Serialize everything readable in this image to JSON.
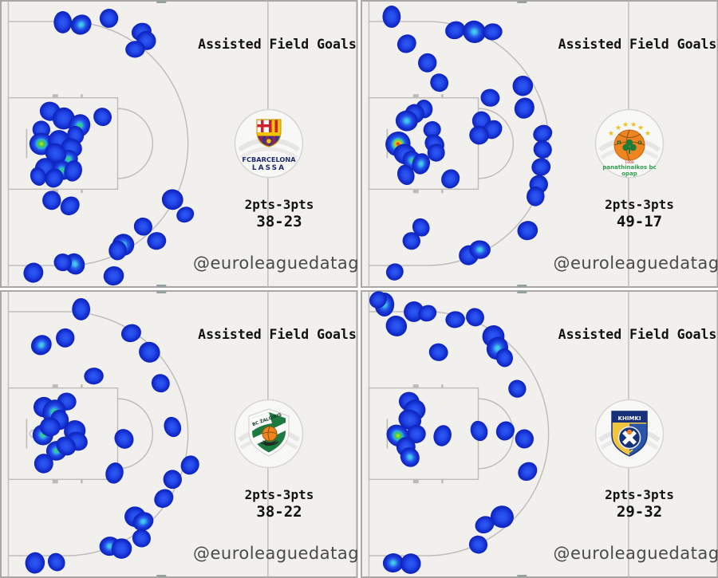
{
  "ui": {
    "watermark": "@euroleaguedataguy",
    "colors": {
      "panel_bg": "#f1f0ed",
      "court_line": "#bdbab7",
      "panel_border": "#a9a6a3",
      "tick_mark": "#95a0a0",
      "title_text": "#111111",
      "watermark_text": "#4a4a4a",
      "heat_levels": [
        [
          [
            0,
            "#2e5bf0"
          ],
          [
            0.45,
            "#2349ea"
          ],
          [
            0.72,
            "#1733d4"
          ],
          [
            1,
            "#0c22b8"
          ]
        ],
        [
          [
            0,
            "#45d6e2"
          ],
          [
            0.22,
            "#38b4ea"
          ],
          [
            0.42,
            "#2a62ee"
          ],
          [
            0.7,
            "#1834d6"
          ],
          [
            1,
            "#0c22b8"
          ]
        ],
        [
          [
            0,
            "#2fd04e"
          ],
          [
            0.2,
            "#31c8b4"
          ],
          [
            0.35,
            "#2d8cec"
          ],
          [
            0.55,
            "#2349e8"
          ],
          [
            0.8,
            "#1531cc"
          ],
          [
            1,
            "#0c22b8"
          ]
        ],
        [
          [
            0,
            "#cfe51c"
          ],
          [
            0.14,
            "#7fd92f"
          ],
          [
            0.26,
            "#35c45c"
          ],
          [
            0.4,
            "#30b4d8"
          ],
          [
            0.58,
            "#2453ec"
          ],
          [
            0.82,
            "#1531cc"
          ],
          [
            1,
            "#0c22b8"
          ]
        ],
        [
          [
            0,
            "#dd1f12"
          ],
          [
            0.12,
            "#f26a15"
          ],
          [
            0.2,
            "#edc41d"
          ],
          [
            0.3,
            "#7fd22c"
          ],
          [
            0.42,
            "#32c2c8"
          ],
          [
            0.58,
            "#2453ec"
          ],
          [
            0.82,
            "#1531cc"
          ],
          [
            1,
            "#0c22b8"
          ]
        ]
      ]
    }
  },
  "chart_data": [
    {
      "panel": "top-left",
      "type": "heatmap",
      "title": "Assisted Field Goals",
      "team": "FC Barcelona Lassa",
      "logo_lines": [
        "FCBARCELONA",
        "LASSA"
      ],
      "stats_label": "2pts-3pts",
      "score": "38-23",
      "assisted_2pt": 38,
      "assisted_3pt": 23,
      "watermark": "@euroleaguedataguy",
      "coord_space": [
        450,
        362
      ],
      "shots": [
        [
          79,
          28,
          0,
          13
        ],
        [
          102,
          31,
          1,
          13
        ],
        [
          137,
          23,
          0,
          12
        ],
        [
          178,
          40,
          0,
          12
        ],
        [
          184,
          51,
          0,
          11
        ],
        [
          170,
          62,
          0,
          12
        ],
        [
          129,
          147,
          0,
          12
        ],
        [
          63,
          140,
          0,
          13
        ],
        [
          80,
          149,
          0,
          13
        ],
        [
          100,
          158,
          2,
          13
        ],
        [
          95,
          170,
          0,
          12
        ],
        [
          52,
          163,
          0,
          12
        ],
        [
          52,
          181,
          3,
          14
        ],
        [
          74,
          177,
          0,
          13
        ],
        [
          90,
          186,
          0,
          12
        ],
        [
          86,
          200,
          2,
          13
        ],
        [
          70,
          193,
          0,
          13
        ],
        [
          57,
          212,
          0,
          13
        ],
        [
          78,
          214,
          2,
          12
        ],
        [
          92,
          215,
          0,
          12
        ],
        [
          48,
          222,
          0,
          11
        ],
        [
          68,
          224,
          0,
          12
        ],
        [
          65,
          252,
          0,
          12
        ],
        [
          88,
          259,
          0,
          12
        ],
        [
          217,
          251,
          0,
          12
        ],
        [
          233,
          270,
          0,
          11
        ],
        [
          180,
          285,
          0,
          12
        ],
        [
          197,
          303,
          0,
          12
        ],
        [
          155,
          308,
          1,
          13
        ],
        [
          148,
          315,
          0,
          11
        ],
        [
          94,
          332,
          1,
          14
        ],
        [
          79,
          330,
          0,
          12
        ],
        [
          143,
          347,
          0,
          12
        ],
        [
          42,
          343,
          0,
          12
        ]
      ]
    },
    {
      "panel": "top-right",
      "type": "heatmap",
      "title": "Assisted Field Goals",
      "team": "Panathinaikos BC OPAP",
      "logo_lines": [
        "panathinaikos bc",
        "opap",
        "1908"
      ],
      "stats_label": "2pts-3pts",
      "score": "49-17",
      "assisted_2pt": 49,
      "assisted_3pt": 17,
      "watermark": "@euroleaguedataguy",
      "coord_space": [
        450,
        362
      ],
      "shots": [
        [
          39,
          21,
          0,
          13
        ],
        [
          58,
          55,
          0,
          12
        ],
        [
          84,
          79,
          0,
          12
        ],
        [
          119,
          38,
          0,
          12
        ],
        [
          143,
          40,
          1,
          13
        ],
        [
          166,
          40,
          0,
          12
        ],
        [
          99,
          104,
          0,
          12
        ],
        [
          163,
          123,
          0,
          12
        ],
        [
          204,
          108,
          0,
          12
        ],
        [
          206,
          136,
          0,
          12
        ],
        [
          80,
          137,
          0,
          12
        ],
        [
          68,
          143,
          0,
          13
        ],
        [
          58,
          152,
          1,
          13
        ],
        [
          47,
          181,
          4,
          15
        ],
        [
          56,
          194,
          0,
          13
        ],
        [
          90,
          163,
          0,
          12
        ],
        [
          93,
          181,
          0,
          12
        ],
        [
          95,
          192,
          0,
          11
        ],
        [
          65,
          202,
          2,
          12
        ],
        [
          76,
          206,
          1,
          12
        ],
        [
          57,
          220,
          0,
          12
        ],
        [
          113,
          225,
          0,
          12
        ],
        [
          152,
          152,
          0,
          12
        ],
        [
          166,
          163,
          0,
          12
        ],
        [
          149,
          170,
          0,
          11
        ],
        [
          229,
          168,
          0,
          12
        ],
        [
          229,
          188,
          0,
          12
        ],
        [
          227,
          210,
          0,
          12
        ],
        [
          224,
          232,
          0,
          11
        ],
        [
          220,
          247,
          0,
          11
        ],
        [
          76,
          286,
          0,
          12
        ],
        [
          64,
          303,
          0,
          12
        ],
        [
          210,
          290,
          0,
          12
        ],
        [
          136,
          321,
          0,
          12
        ],
        [
          150,
          314,
          1,
          12
        ],
        [
          43,
          342,
          0,
          12
        ]
      ]
    },
    {
      "panel": "bottom-left",
      "type": "heatmap",
      "title": "Assisted Field Goals",
      "team": "BC Zalgiris Kaunas",
      "logo_lines": [
        "BC ŽALGIRIS"
      ],
      "stats_label": "2pts-3pts",
      "score": "38-22",
      "assisted_2pt": 38,
      "assisted_3pt": 22,
      "watermark": "@euroleaguedataguy",
      "coord_space": [
        450,
        362
      ],
      "shots": [
        [
          102,
          24,
          0,
          13
        ],
        [
          52,
          69,
          1,
          13
        ],
        [
          82,
          60,
          0,
          12
        ],
        [
          165,
          54,
          0,
          12
        ],
        [
          188,
          78,
          0,
          12
        ],
        [
          118,
          108,
          0,
          12
        ],
        [
          202,
          117,
          0,
          12
        ],
        [
          84,
          140,
          0,
          12
        ],
        [
          55,
          147,
          0,
          12
        ],
        [
          68,
          153,
          2,
          14
        ],
        [
          75,
          163,
          0,
          13
        ],
        [
          54,
          182,
          2,
          14
        ],
        [
          63,
          172,
          0,
          12
        ],
        [
          94,
          177,
          0,
          13
        ],
        [
          97,
          190,
          0,
          12
        ],
        [
          71,
          202,
          2,
          14
        ],
        [
          83,
          196,
          0,
          12
        ],
        [
          55,
          218,
          0,
          12
        ],
        [
          156,
          187,
          0,
          12
        ],
        [
          144,
          230,
          0,
          12
        ],
        [
          217,
          172,
          0,
          12
        ],
        [
          239,
          220,
          0,
          12
        ],
        [
          217,
          238,
          0,
          12
        ],
        [
          206,
          262,
          0,
          12
        ],
        [
          170,
          285,
          0,
          12
        ],
        [
          180,
          291,
          1,
          13
        ],
        [
          178,
          312,
          0,
          12
        ],
        [
          138,
          322,
          1,
          13
        ],
        [
          153,
          325,
          0,
          12
        ],
        [
          44,
          343,
          0,
          12
        ],
        [
          71,
          342,
          0,
          12
        ]
      ]
    },
    {
      "panel": "bottom-right",
      "type": "heatmap",
      "title": "Assisted Field Goals",
      "team": "Khimki Moscow Region",
      "logo_lines": [
        "KHIMKI"
      ],
      "stats_label": "2pts-3pts",
      "score": "29-32",
      "assisted_2pt": 29,
      "assisted_3pt": 32,
      "watermark": "@euroleaguedataguy",
      "coord_space": [
        450,
        362
      ],
      "shots": [
        [
          30,
          18,
          1,
          14
        ],
        [
          22,
          12,
          0,
          11
        ],
        [
          67,
          27,
          0,
          13
        ],
        [
          84,
          29,
          0,
          11
        ],
        [
          45,
          45,
          0,
          12
        ],
        [
          119,
          37,
          0,
          12
        ],
        [
          144,
          34,
          0,
          12
        ],
        [
          98,
          78,
          0,
          12
        ],
        [
          167,
          58,
          0,
          13
        ],
        [
          172,
          73,
          1,
          13
        ],
        [
          181,
          85,
          0,
          12
        ],
        [
          197,
          124,
          0,
          12
        ],
        [
          61,
          140,
          0,
          12
        ],
        [
          68,
          151,
          0,
          13
        ],
        [
          62,
          163,
          0,
          13
        ],
        [
          70,
          181,
          0,
          13
        ],
        [
          47,
          183,
          3,
          14
        ],
        [
          57,
          197,
          0,
          12
        ],
        [
          62,
          210,
          1,
          12
        ],
        [
          103,
          183,
          0,
          12
        ],
        [
          149,
          177,
          0,
          12
        ],
        [
          182,
          177,
          0,
          12
        ],
        [
          206,
          187,
          0,
          12
        ],
        [
          210,
          228,
          0,
          12
        ],
        [
          178,
          285,
          0,
          13
        ],
        [
          156,
          295,
          0,
          12
        ],
        [
          148,
          320,
          0,
          12
        ],
        [
          41,
          343,
          1,
          13
        ],
        [
          63,
          344,
          0,
          12
        ]
      ]
    }
  ]
}
